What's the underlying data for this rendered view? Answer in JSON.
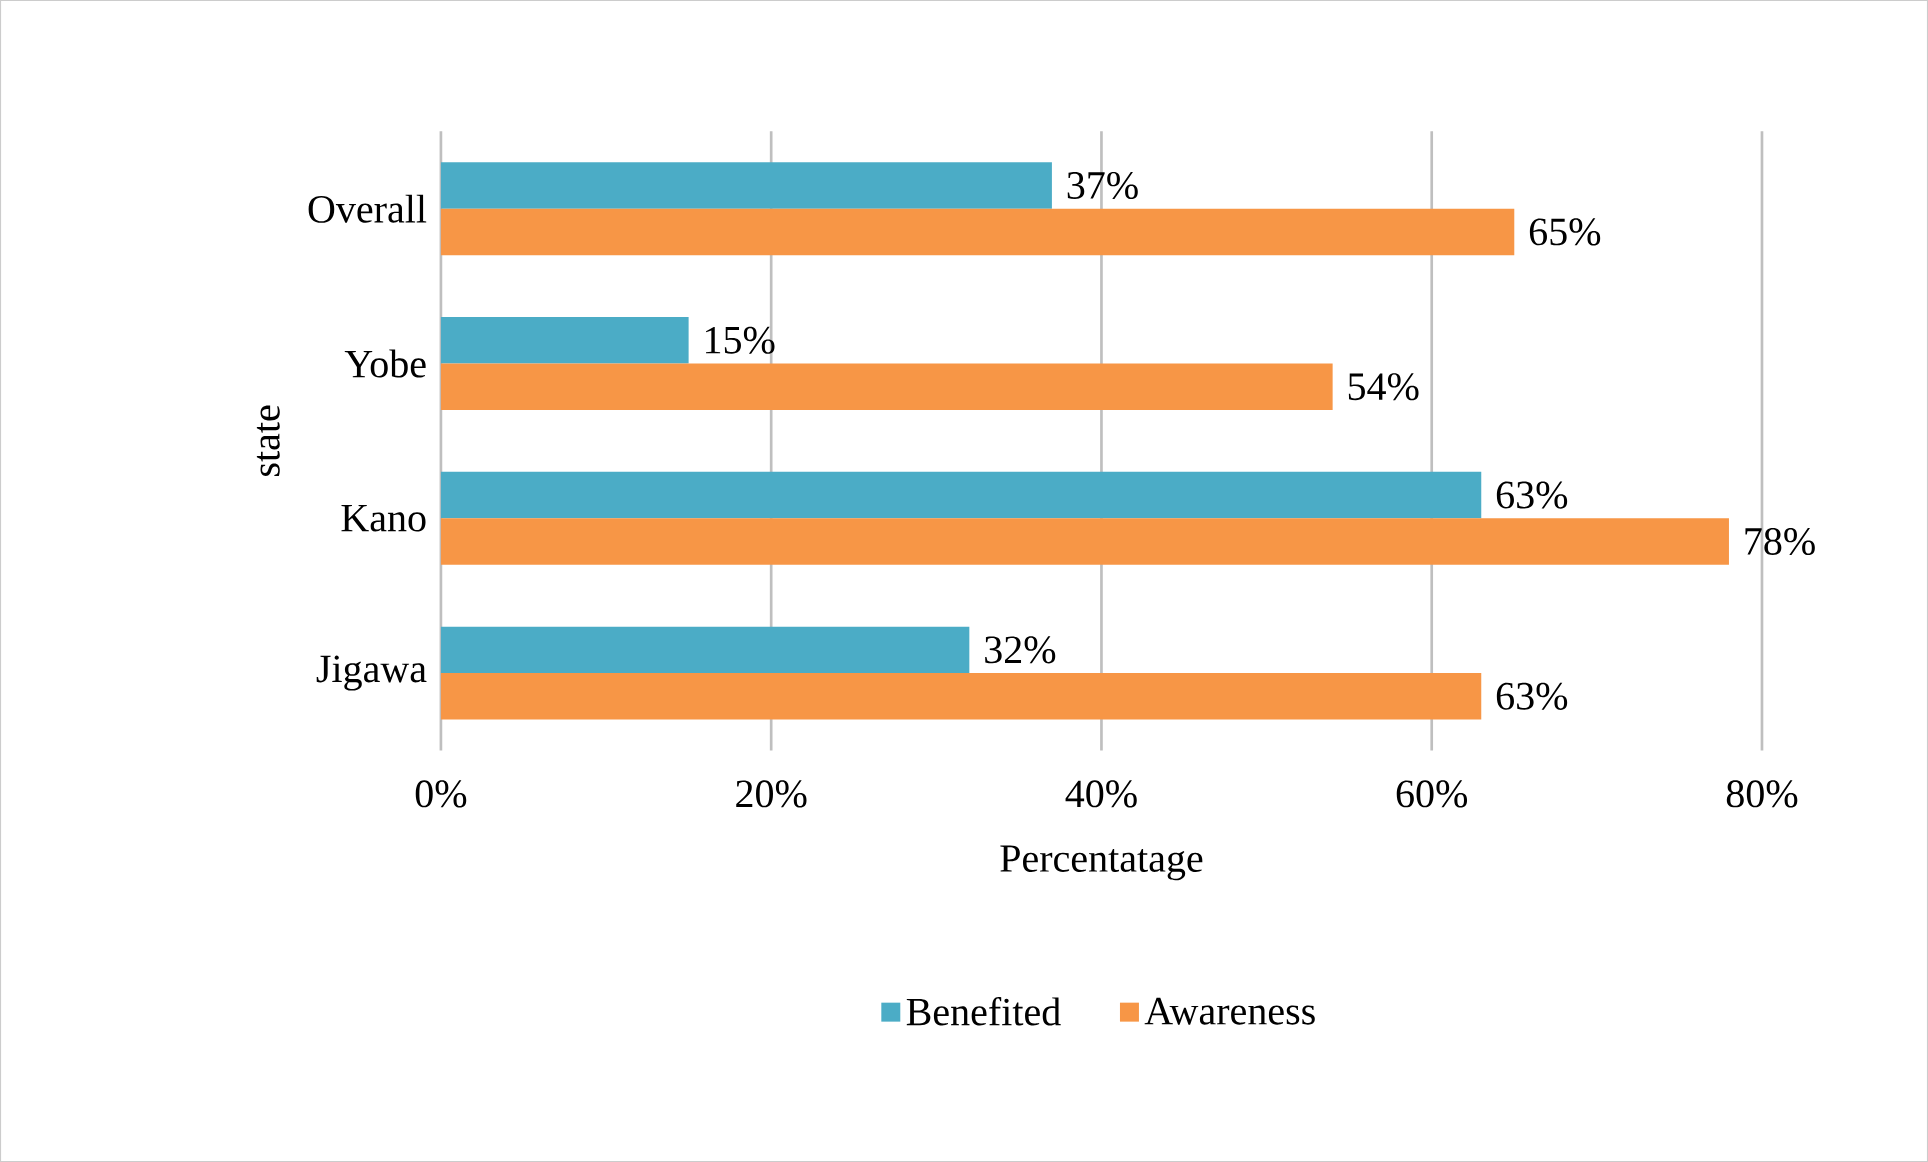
{
  "chart_data": {
    "type": "bar",
    "orientation": "horizontal",
    "xlabel": "Percentatage",
    "ylabel": "state",
    "categories": [
      "Overall",
      "Yobe",
      "Kano",
      "Jigawa"
    ],
    "series": [
      {
        "name": "Benefited",
        "color": "#4bacc6",
        "values": [
          37,
          15,
          63,
          32
        ],
        "value_labels": [
          "37%",
          "15%",
          "63%",
          "32%"
        ]
      },
      {
        "name": "Awareness",
        "color": "#f79646",
        "values": [
          65,
          54,
          78,
          63
        ],
        "value_labels": [
          "65%",
          "54%",
          "78%",
          "63%"
        ]
      }
    ],
    "xlim": [
      0,
      80
    ],
    "xticks": [
      {
        "value": 0,
        "label": "0%"
      },
      {
        "value": 20,
        "label": "20%"
      },
      {
        "value": 40,
        "label": "40%"
      },
      {
        "value": 60,
        "label": "60%"
      },
      {
        "value": 80,
        "label": "80%"
      }
    ],
    "grid": "x",
    "legend": "bottom"
  }
}
